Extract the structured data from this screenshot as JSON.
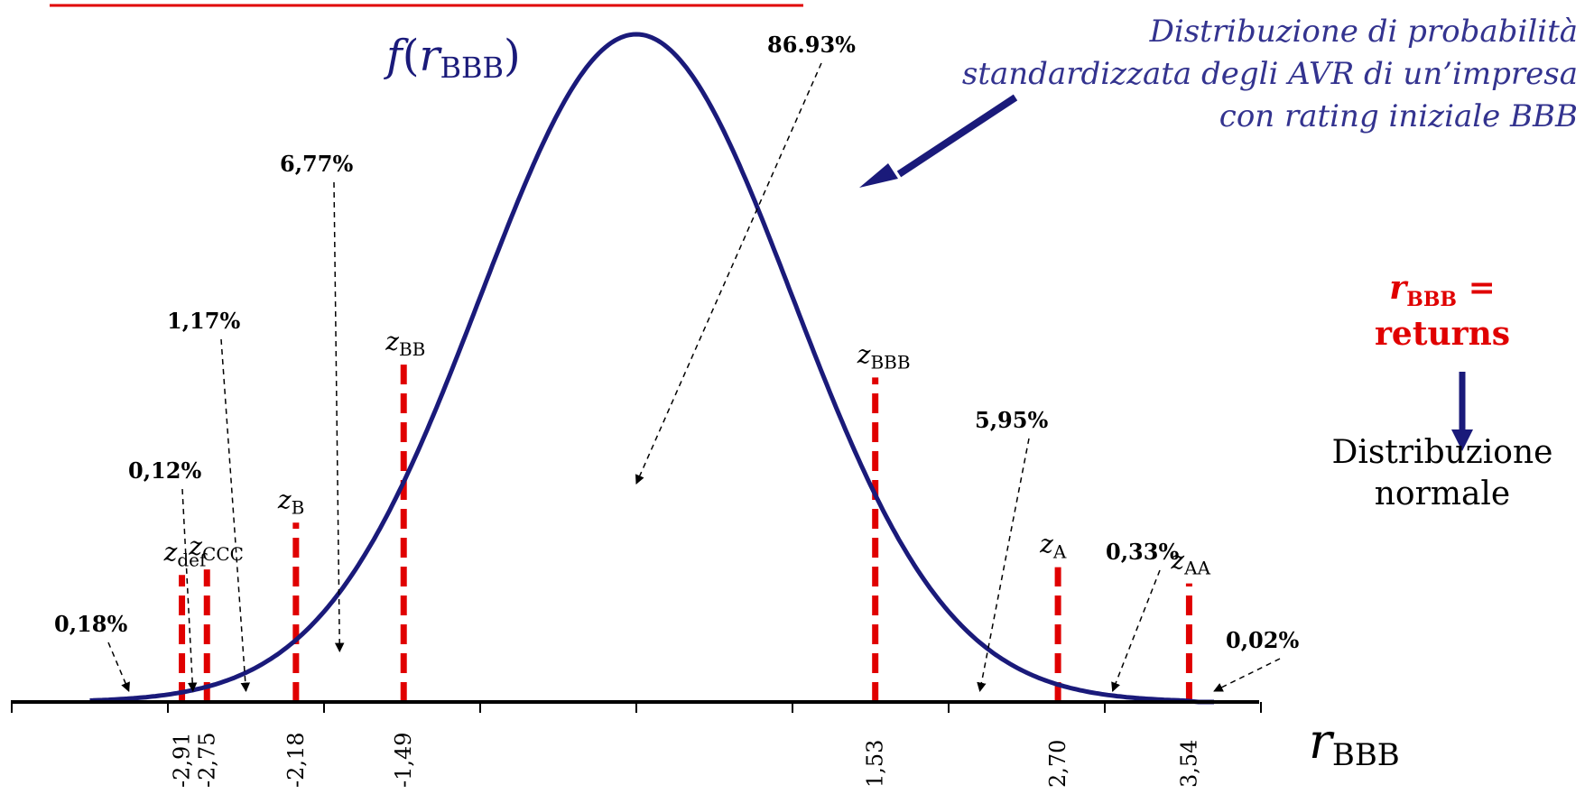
{
  "title": "Distribuzione di probabilità standardizzata degli AVR di un’impresa con rating iniziale BBB",
  "density_label": {
    "func": "f",
    "var": "r",
    "sub": "BBB"
  },
  "axis_label": {
    "var": "r",
    "sub": "BBB"
  },
  "returns_note": {
    "var": "r",
    "sub": "BBB",
    "eq": " =",
    "word": "returns"
  },
  "result_label": "Distribuzione normale",
  "colors": {
    "curve": "#1a1a7a",
    "threshold": "#e00000",
    "axis": "#000000",
    "title": "#33338f",
    "underline": "#e00000"
  },
  "chart_data": {
    "type": "line",
    "curve": "standard normal density",
    "thresholds": [
      {
        "name": "z",
        "sub": "def",
        "value": -2.91,
        "tick": "-2,91"
      },
      {
        "name": "z",
        "sub": "CCC",
        "value": -2.75,
        "tick": "-2,75"
      },
      {
        "name": "z",
        "sub": "B",
        "value": -2.18,
        "tick": "-2,18"
      },
      {
        "name": "z",
        "sub": "BB",
        "value": -1.49,
        "tick": "-1,49"
      },
      {
        "name": "z",
        "sub": "BBB",
        "value": 1.53,
        "tick": "1,53"
      },
      {
        "name": "z",
        "sub": "A",
        "value": 2.7,
        "tick": "2,70"
      },
      {
        "name": "z",
        "sub": "AA",
        "value": 3.54,
        "tick": "3,54"
      }
    ],
    "probabilities": [
      {
        "label": "0,18%",
        "value": 0.18
      },
      {
        "label": "0,12%",
        "value": 0.12
      },
      {
        "label": "1,17%",
        "value": 1.17
      },
      {
        "label": "6,77%",
        "value": 6.77
      },
      {
        "label": "86.93%",
        "value": 86.93
      },
      {
        "label": "5,95%",
        "value": 5.95
      },
      {
        "label": "0,33%",
        "value": 0.33
      },
      {
        "label": "0,02%",
        "value": 0.02
      }
    ],
    "xlim": [
      -4,
      4
    ]
  }
}
